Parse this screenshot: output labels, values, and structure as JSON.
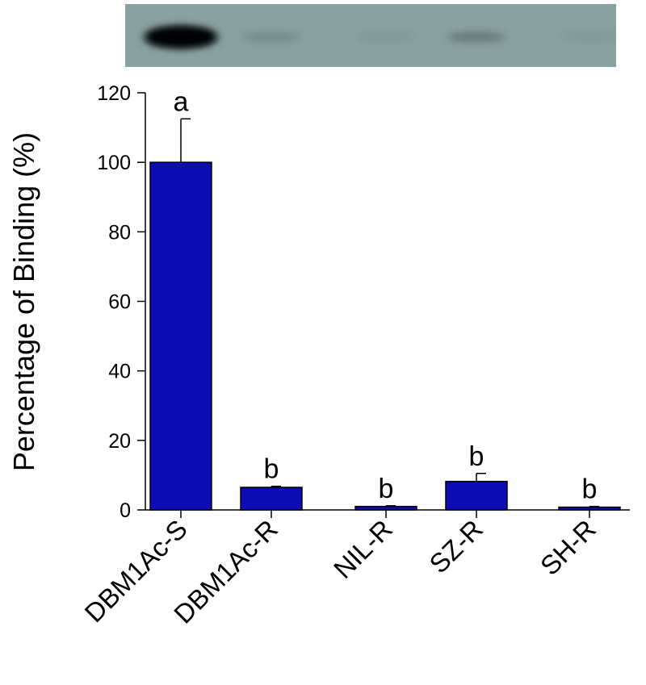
{
  "chart_data": {
    "type": "bar",
    "title": "",
    "xlabel": "",
    "ylabel": "Percentage of Binding (%)",
    "ylim": [
      0,
      120
    ],
    "yticks": [
      0,
      20,
      40,
      60,
      80,
      100,
      120
    ],
    "grid": false,
    "bar_color": "#0c0cb4",
    "categories": [
      "DBM1Ac-S",
      "DBM1Ac-R",
      "NIL-R",
      "SZ-R",
      "SH-R"
    ],
    "values": [
      100,
      6.5,
      1.0,
      8.2,
      0.8
    ],
    "error_upper": [
      12.5,
      0.3,
      0.2,
      2.3,
      0.2
    ],
    "significance_letters": [
      "a",
      "b",
      "b",
      "b",
      "b"
    ],
    "blot": {
      "background_color": "#8aa1a1",
      "band_intensity": [
        1.0,
        0.18,
        0.08,
        0.32,
        0.07
      ]
    }
  }
}
